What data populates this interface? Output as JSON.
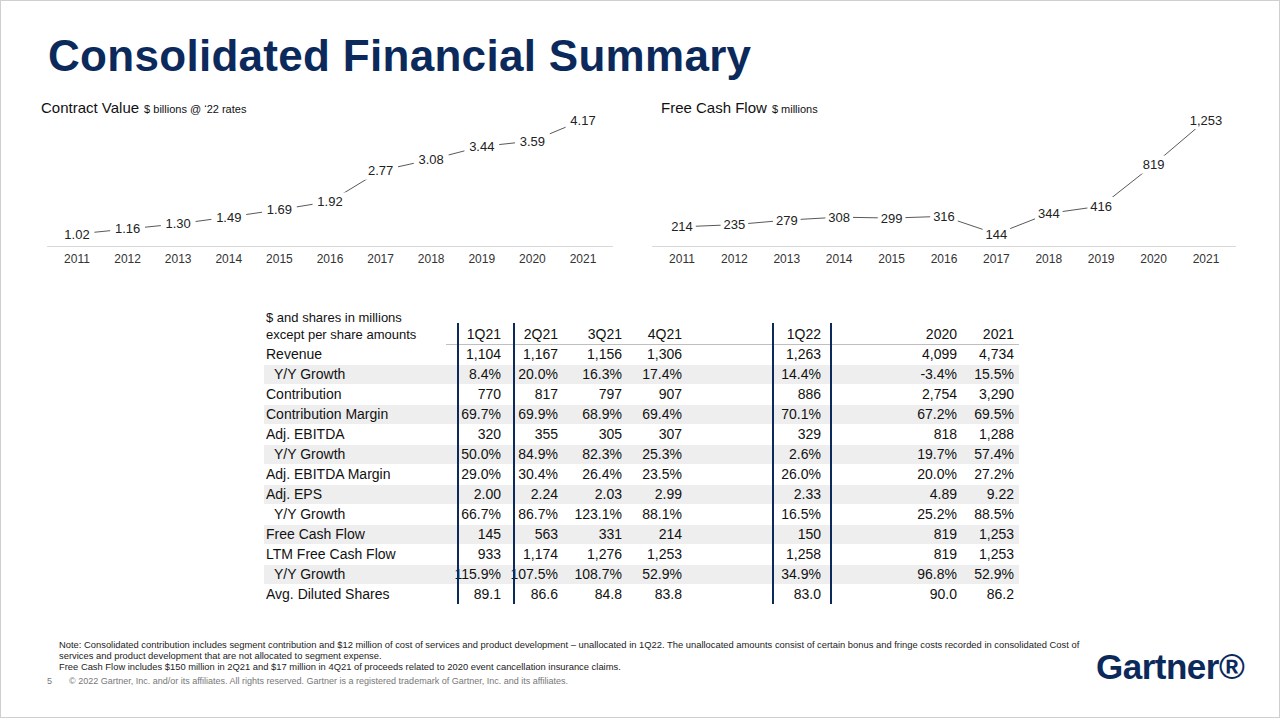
{
  "title": "Consolidated Financial Summary",
  "chart_data": [
    {
      "type": "line",
      "title": "Contract Value",
      "subtitle": "$ billions @ ‘22 rates",
      "categories": [
        "2011",
        "2012",
        "2013",
        "2014",
        "2015",
        "2016",
        "2017",
        "2018",
        "2019",
        "2020",
        "2021"
      ],
      "values": [
        1.02,
        1.16,
        1.3,
        1.49,
        1.69,
        1.92,
        2.77,
        3.08,
        3.44,
        3.59,
        4.17
      ],
      "value_labels": [
        "1.02",
        "1.16",
        "1.30",
        "1.49",
        "1.69",
        "1.92",
        "2.77",
        "3.08",
        "3.44",
        "3.59",
        "4.17"
      ],
      "color": "#595959",
      "data_labels": true,
      "tick_labels": "x",
      "grid": false
    },
    {
      "type": "line",
      "title": "Free Cash Flow",
      "subtitle": "$ millions",
      "categories": [
        "2011",
        "2012",
        "2013",
        "2014",
        "2015",
        "2016",
        "2017",
        "2018",
        "2019",
        "2020",
        "2021"
      ],
      "values": [
        214,
        235,
        279,
        308,
        299,
        316,
        144,
        344,
        416,
        819,
        1253
      ],
      "value_labels": [
        "214",
        "235",
        "279",
        "308",
        "299",
        "316",
        "144",
        "344",
        "416",
        "819",
        "1,253"
      ],
      "color": "#595959",
      "data_labels": true,
      "tick_labels": "x",
      "grid": false
    }
  ],
  "table": {
    "header": {
      "label": [
        "$ and shares in millions",
        "except per share amounts"
      ],
      "columns": [
        "1Q21",
        "2Q21",
        "3Q21",
        "4Q21",
        "1Q22",
        "2020",
        "2021"
      ]
    },
    "rows": [
      {
        "label": "Revenue",
        "indent": false,
        "cells": [
          "1,104",
          "1,167",
          "1,156",
          "1,306",
          "1,263",
          "4,099",
          "4,734"
        ]
      },
      {
        "label": "Y/Y Growth",
        "indent": true,
        "cells": [
          "8.4%",
          "20.0%",
          "16.3%",
          "17.4%",
          "14.4%",
          "-3.4%",
          "15.5%"
        ]
      },
      {
        "label": "Contribution",
        "indent": false,
        "cells": [
          "770",
          "817",
          "797",
          "907",
          "886",
          "2,754",
          "3,290"
        ]
      },
      {
        "label": "Contribution Margin",
        "indent": false,
        "cells": [
          "69.7%",
          "69.9%",
          "68.9%",
          "69.4%",
          "70.1%",
          "67.2%",
          "69.5%"
        ]
      },
      {
        "label": "Adj. EBITDA",
        "indent": false,
        "cells": [
          "320",
          "355",
          "305",
          "307",
          "329",
          "818",
          "1,288"
        ]
      },
      {
        "label": "Y/Y Growth",
        "indent": true,
        "cells": [
          "50.0%",
          "84.9%",
          "82.3%",
          "25.3%",
          "2.6%",
          "19.7%",
          "57.4%"
        ]
      },
      {
        "label": "Adj. EBITDA Margin",
        "indent": false,
        "cells": [
          "29.0%",
          "30.4%",
          "26.4%",
          "23.5%",
          "26.0%",
          "20.0%",
          "27.2%"
        ]
      },
      {
        "label": "Adj. EPS",
        "indent": false,
        "cells": [
          "2.00",
          "2.24",
          "2.03",
          "2.99",
          "2.33",
          "4.89",
          "9.22"
        ]
      },
      {
        "label": "Y/Y Growth",
        "indent": true,
        "cells": [
          "66.7%",
          "86.7%",
          "123.1%",
          "88.1%",
          "16.5%",
          "25.2%",
          "88.5%"
        ]
      },
      {
        "label": "Free Cash Flow",
        "indent": false,
        "cells": [
          "145",
          "563",
          "331",
          "214",
          "150",
          "819",
          "1,253"
        ]
      },
      {
        "label": "LTM Free Cash Flow",
        "indent": false,
        "cells": [
          "933",
          "1,174",
          "1,276",
          "1,253",
          "1,258",
          "819",
          "1,253"
        ]
      },
      {
        "label": "Y/Y Growth",
        "indent": true,
        "cells": [
          "115.9%",
          "107.5%",
          "108.7%",
          "52.9%",
          "34.9%",
          "96.8%",
          "52.9%"
        ]
      },
      {
        "label": "Avg. Diluted Shares",
        "indent": false,
        "cells": [
          "89.1",
          "86.6",
          "84.8",
          "83.8",
          "83.0",
          "90.0",
          "86.2"
        ]
      }
    ]
  },
  "notes": [
    "Note: Consolidated contribution includes segment contribution and $12 million of cost of services and product development – unallocated in 1Q22. The unallocated amounts consist of certain bonus and fringe costs recorded in consolidated Cost of",
    "services and product development that are not allocated to segment expense.",
    "Free Cash Flow includes $150 million in 2Q21 and $17 million in 4Q21 of proceeds related to 2020 event cancellation insurance claims."
  ],
  "footer": {
    "page": "5",
    "copyright": "© 2022 Gartner, Inc. and/or its affiliates. All rights reserved. Gartner is a registered trademark of Gartner, Inc. and its affiliates."
  },
  "logo": "Gartner®"
}
